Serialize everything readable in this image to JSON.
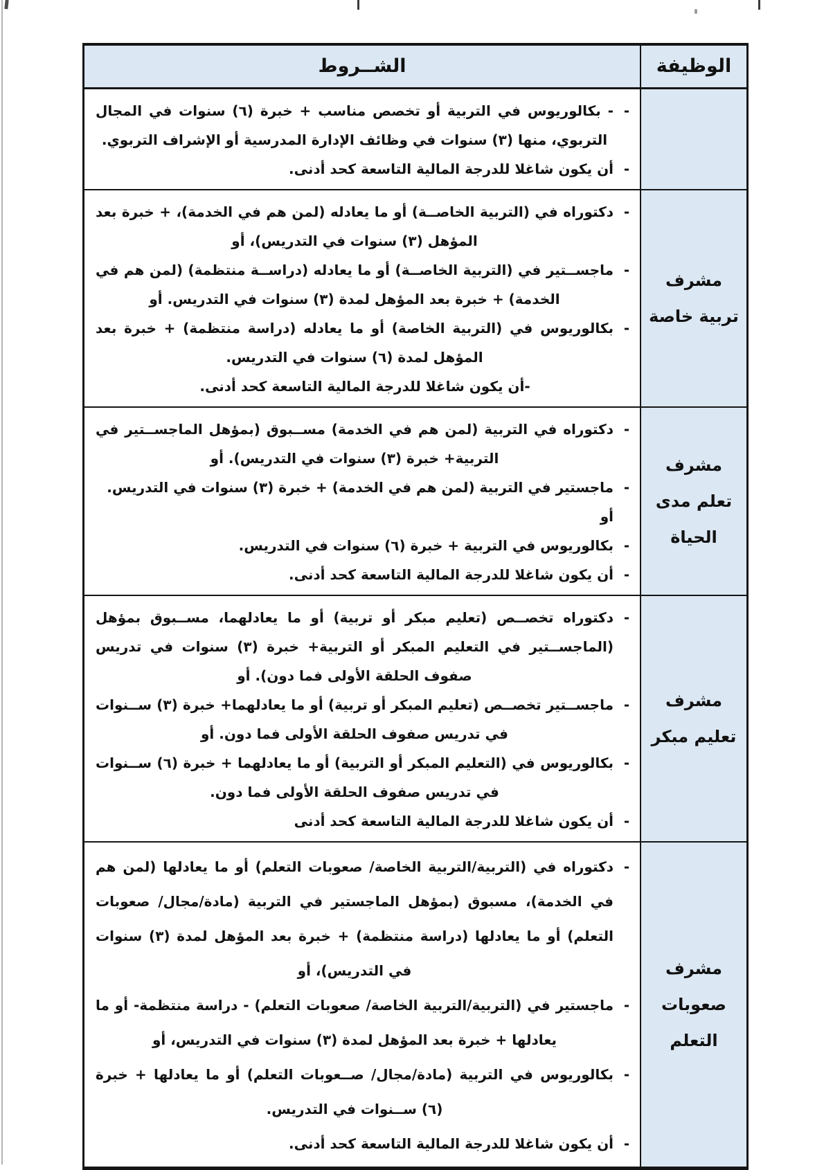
{
  "document": {
    "bullet_char": "-",
    "colors": {
      "header_bg": "#dbe7f2",
      "border": "#151515"
    },
    "table": {
      "header": {
        "conditions": "الشــروط",
        "position": "الوظيفة"
      },
      "rows": [
        {
          "position": "",
          "items": [
            {
              "text": "- بكالوريوس في التربية أو تخصص مناسب + خبرة (٦) سنوات في المجال التربوي، منها (٣) سنوات في وظائف الإدارة المدرسية أو الإشراف التربوي."
            },
            {
              "text": "أن يكون شاغلا للدرجة المالية التاسعة كحد أدنى."
            }
          ]
        },
        {
          "position": "مشرف تربية خاصة",
          "items": [
            {
              "text": "دكتوراه في (التربية الخاصــة) أو ما يعادله (لمن هم في الخدمة)، + خبرة بعد المؤهل (٣) سنوات في التدريس)، أو"
            },
            {
              "text": "ماجســتير في (التربية الخاصــة) أو ما يعادله (دراســة منتظمة) (لمن هم في الخدمة) + خبرة بعد المؤهل لمدة (٣) سنوات في التدريس. أو"
            },
            {
              "text": "بكالوريوس في (التربية الخاصة) أو ما يعادله (دراسة منتظمة) + خبرة بعد المؤهل لمدة (٦) سنوات في التدريس."
            },
            {
              "text": "-أن يكون شاغلا للدرجة المالية التاسعة كحد أدنى."
            }
          ]
        },
        {
          "position": "مشرف تعلم مدى الحياة",
          "items": [
            {
              "text": "دكتوراه في التربية (لمن هم في الخدمة) مســبوق (بمؤهل الماجســتير في التربية+ خبرة (٣) سنوات في التدريس). أو"
            },
            {
              "text": "ماجستير في التربية (لمن هم في الخدمة) + خبرة (٣) سنوات في التدريس. أو"
            },
            {
              "text": "بكالوريوس في التربية + خبرة (٦) سنوات في التدريس."
            },
            {
              "text": "أن يكون شاغلا للدرجة المالية التاسعة كحد أدنى."
            }
          ]
        },
        {
          "position": "مشرف تعليم مبكر",
          "items": [
            {
              "text": "دكتوراه تخصــص (تعليم مبكر أو تربية) أو ما يعادلهما، مســبوق بمؤهل (الماجســتير في التعليم المبكر أو التربية+ خبرة (٣) سنوات في تدريس صفوف الحلقة الأولى فما دون). أو"
            },
            {
              "text": "ماجســتير تخصــص (تعليم المبكر أو تربية) أو ما يعادلهما+ خبرة (٣) ســنوات في تدريس صفوف الحلقة الأولى فما دون. أو"
            },
            {
              "text": "بكالوريوس في (التعليم المبكر أو التربية) أو ما يعادلهما + خبرة (٦) ســنوات في تدريس صفوف الحلقة الأولى فما دون."
            },
            {
              "text": "أن يكون شاغلا للدرجة المالية التاسعة كحد أدنى"
            }
          ]
        },
        {
          "position": "مشرف صعوبات التعلم",
          "items": [
            {
              "text": "دكتوراه في (التربية/التربية الخاصة/ صعوبات التعلم) أو ما يعادلها (لمن هم في الخدمة)، مسبوق (بمؤهل الماجستير في التربية (مادة/مجال/ صعوبات التعلم) أو ما يعادلها (دراسة منتظمة) + خبرة بعد المؤهل لمدة (٣) سنوات في التدريس)، أو"
            },
            {
              "text": "ماجستير في (التربية/التربية الخاصة/ صعوبات التعلم) - دراسة منتظمة- أو ما يعادلها + خبرة بعد المؤهل لمدة (٣) سنوات في التدريس، أو"
            },
            {
              "text": "بكالوريوس في التربية (مادة/مجال/ صــعوبات التعلم) أو ما يعادلها + خبرة (٦) ســنوات في التدريس."
            },
            {
              "text": "أن يكون شاغلا للدرجة المالية التاسعة كحد أدنى."
            }
          ]
        }
      ]
    }
  }
}
